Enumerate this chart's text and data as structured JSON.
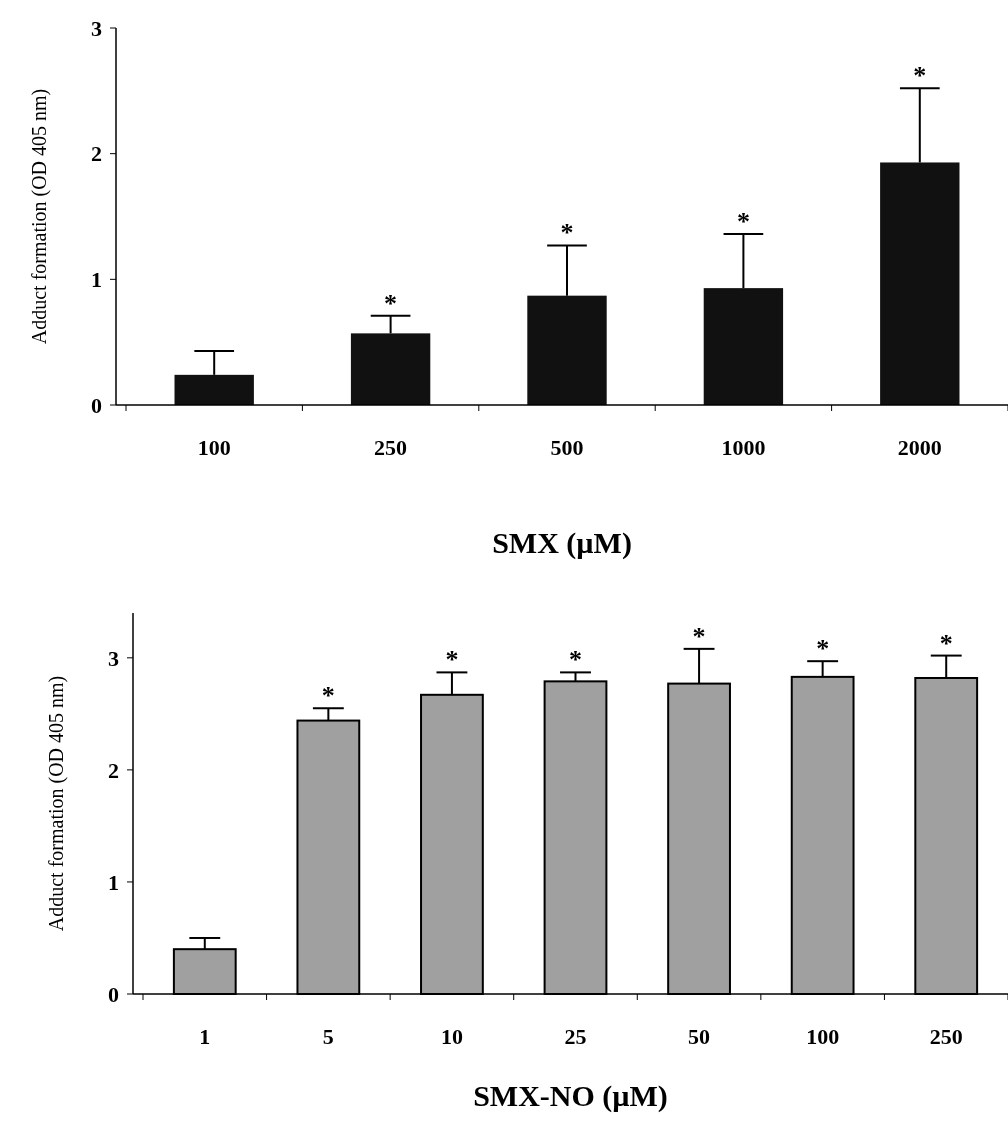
{
  "chart_data": [
    {
      "type": "bar",
      "xlabel": "SMX (µM)",
      "ylabel": "Adduct formation (OD 405 nm)",
      "categories": [
        "100",
        "250",
        "500",
        "1000",
        "2000"
      ],
      "values": [
        0.24,
        0.57,
        0.87,
        0.93,
        1.93
      ],
      "color": "#111111",
      "errors": [
        [
          0.24,
          0.43
        ],
        [
          0.57,
          0.71
        ],
        [
          0.87,
          1.27
        ],
        [
          0.93,
          1.36
        ],
        [
          1.93,
          2.52
        ]
      ],
      "ylim": [
        0,
        3
      ],
      "yticks": [
        0,
        1,
        2,
        3
      ],
      "grid": false,
      "annotations": [
        {
          "text": "*",
          "x": "250",
          "y": 0.71
        },
        {
          "text": "*",
          "x": "500",
          "y": 1.27
        },
        {
          "text": "*",
          "x": "1000",
          "y": 1.36
        },
        {
          "text": "*",
          "x": "2000",
          "y": 2.52
        }
      ]
    },
    {
      "type": "bar",
      "xlabel": "SMX-NO (µM)",
      "ylabel": "Adduct formation (OD 405 nm)",
      "categories": [
        "1",
        "5",
        "10",
        "25",
        "50",
        "100",
        "250"
      ],
      "values": [
        0.4,
        2.44,
        2.67,
        2.79,
        2.77,
        2.83,
        2.82
      ],
      "color": "#a0a0a0",
      "errors": [
        [
          0.4,
          0.5
        ],
        [
          2.44,
          2.55
        ],
        [
          2.67,
          2.87
        ],
        [
          2.79,
          2.87
        ],
        [
          2.77,
          3.08
        ],
        [
          2.83,
          2.97
        ],
        [
          2.82,
          3.02
        ]
      ],
      "ylim": [
        0,
        3.4
      ],
      "yticks": [
        0,
        1,
        2,
        3
      ],
      "grid": false,
      "annotations": [
        {
          "text": "*",
          "x": "5",
          "y": 2.55
        },
        {
          "text": "*",
          "x": "10",
          "y": 2.87
        },
        {
          "text": "*",
          "x": "25",
          "y": 2.87
        },
        {
          "text": "*",
          "x": "50",
          "y": 3.08
        },
        {
          "text": "*",
          "x": "100",
          "y": 2.97
        },
        {
          "text": "*",
          "x": "250",
          "y": 3.02
        }
      ]
    }
  ]
}
